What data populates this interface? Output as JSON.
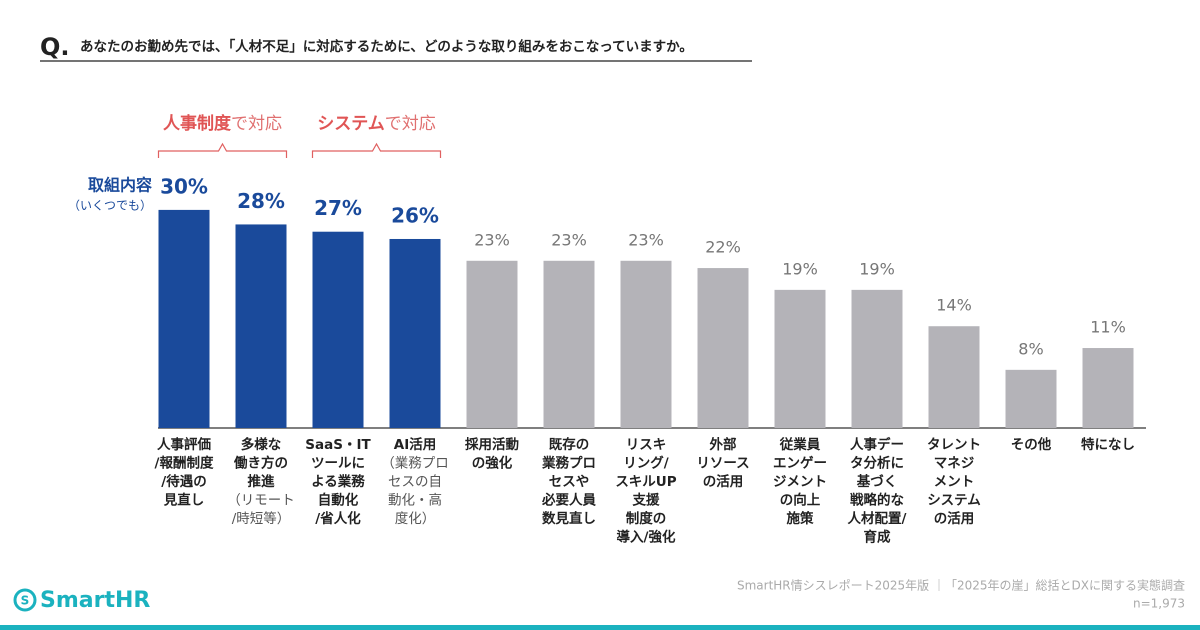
{
  "header": {
    "q": "Q.",
    "question": "あなたのお勤め先では、「人材不足」に対応するために、どのような取り組みをおこなっていますか。"
  },
  "chart_data": {
    "type": "bar",
    "side_label": "取組内容",
    "side_note": "（いくつでも）",
    "groups": [
      {
        "emphasis": "人事制度",
        "suffix": "で対応"
      },
      {
        "emphasis": "システム",
        "suffix": "で対応"
      }
    ],
    "categories": [
      [
        "人事評価",
        "/報酬制度",
        "/待遇の",
        "見直し"
      ],
      [
        "多様な",
        "働き方の",
        "推進",
        "（リモート",
        "/時短等）"
      ],
      [
        "SaaS・IT",
        "ツールに",
        "よる業務",
        "自動化",
        "/省人化"
      ],
      [
        "AI活用",
        "（業務プロ",
        "セスの自",
        "動化・高",
        "度化）"
      ],
      [
        "採用活動",
        "の強化"
      ],
      [
        "既存の",
        "業務プロ",
        "セスや",
        "必要人員",
        "数見直し"
      ],
      [
        "リスキ",
        "リング/",
        "スキルUP",
        "支援",
        "制度の",
        "導入/強化"
      ],
      [
        "外部",
        "リソース",
        "の活用"
      ],
      [
        "従業員",
        "エンゲー",
        "ジメント",
        "の向上",
        "施策"
      ],
      [
        "人事デー",
        "タ分析に",
        "基づく",
        "戦略的な",
        "人材配置/",
        "育成"
      ],
      [
        "タレント",
        "マネジ",
        "メント",
        "システム",
        "の活用"
      ],
      [
        "その他"
      ],
      [
        "特になし"
      ]
    ],
    "values": [
      30,
      28,
      27,
      26,
      23,
      23,
      23,
      22,
      19,
      19,
      14,
      8,
      11
    ],
    "value_labels": [
      "30%",
      "28%",
      "27%",
      "26%",
      "23%",
      "23%",
      "23%",
      "22%",
      "19%",
      "19%",
      "14%",
      "8%",
      "11%"
    ],
    "colors": [
      "#1a4a9b",
      "#1a4a9b",
      "#1a4a9b",
      "#1a4a9b",
      "#b4b3b8",
      "#b4b3b8",
      "#b4b3b8",
      "#b4b3b8",
      "#b4b3b8",
      "#b4b3b8",
      "#b4b3b8",
      "#b4b3b8",
      "#b4b3b8"
    ]
  },
  "footer": {
    "source": "SmartHR情シスレポート2025年版 ｜「2025年の崖」総括とDXに関する実態調査",
    "n": "n=1,973",
    "logo": "SmartHR"
  }
}
